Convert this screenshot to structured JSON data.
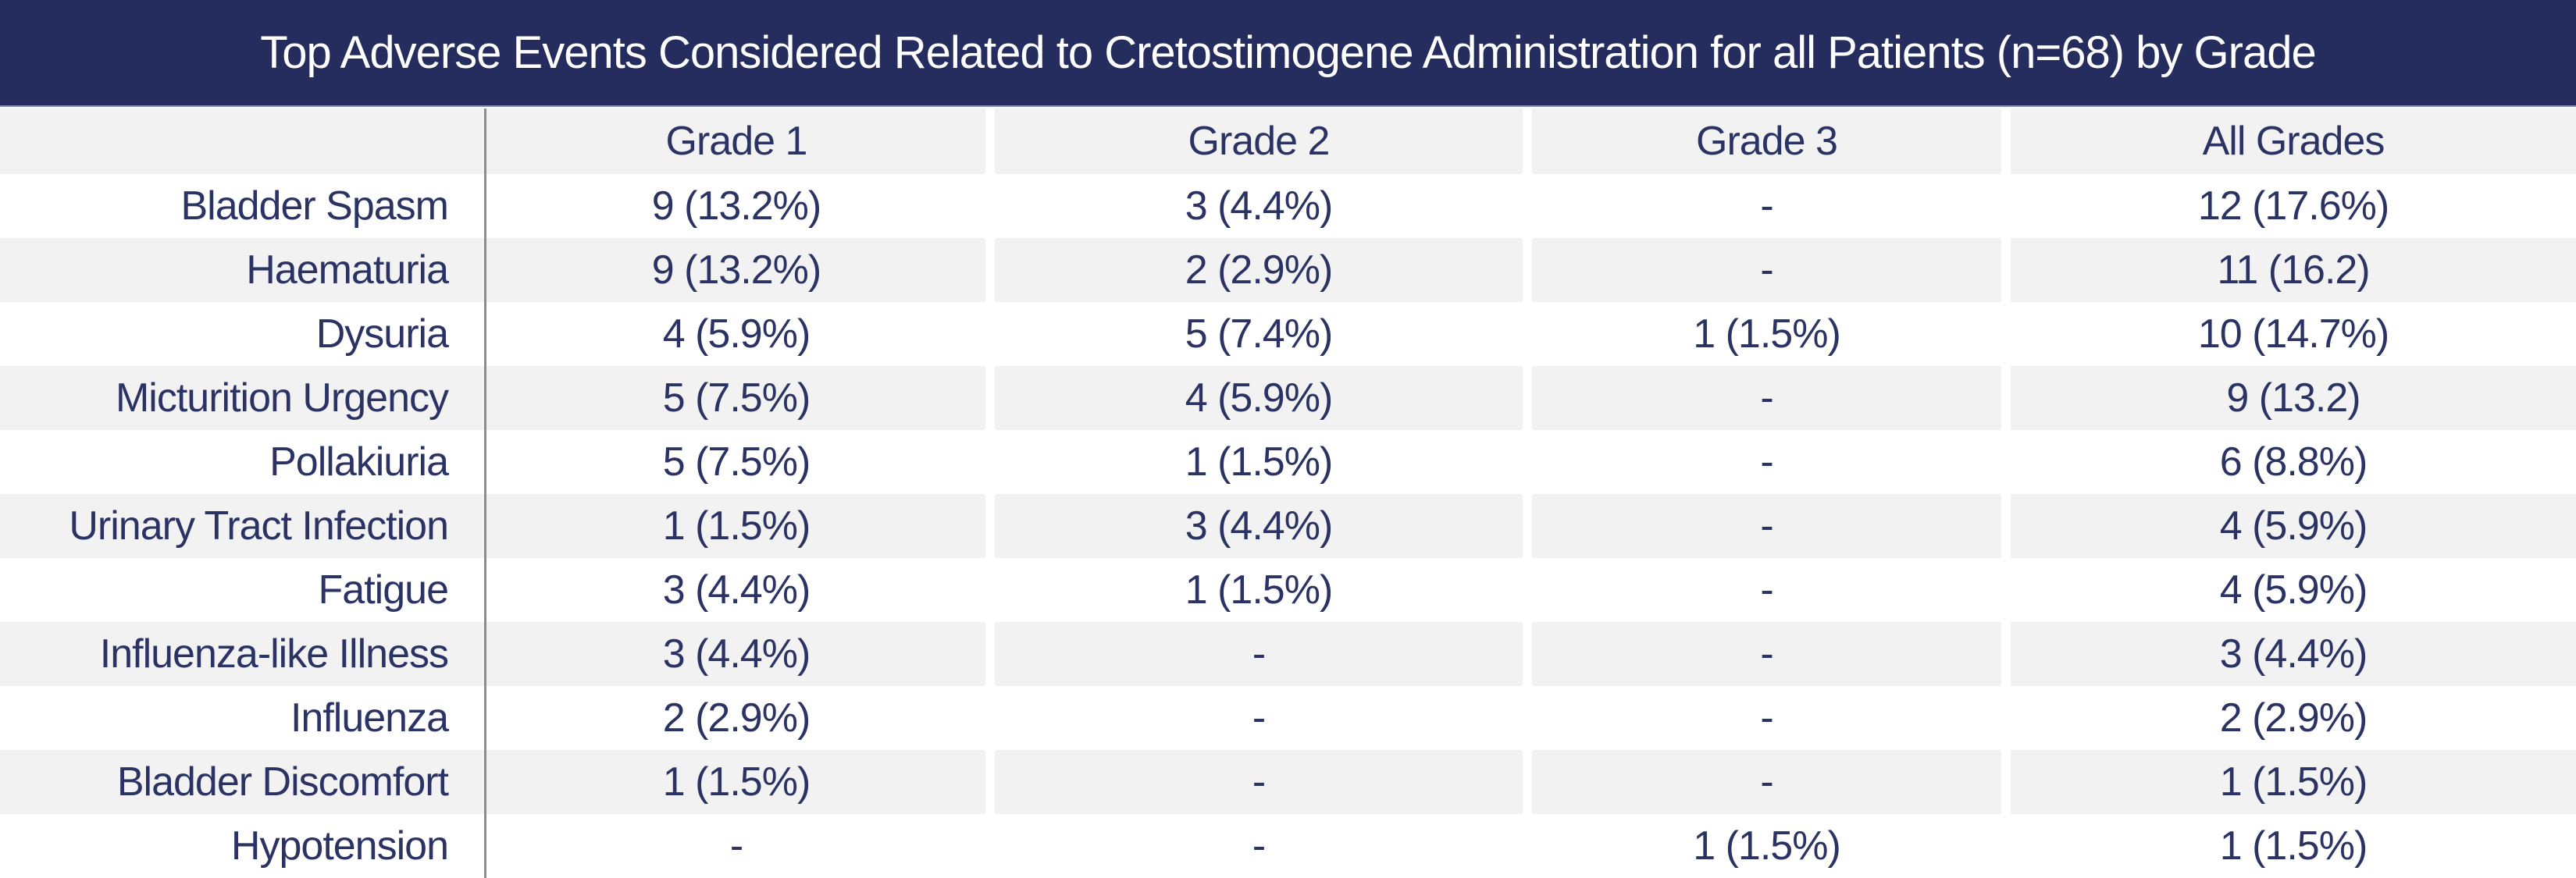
{
  "chart_data": {
    "type": "table",
    "title": "Top Adverse Events Considered Related to Cretostimogene Administration for all Patients (n=68) by Grade",
    "columns": [
      "",
      "Grade 1",
      "Grade 2",
      "Grade 3",
      "All Grades"
    ],
    "rows": [
      {
        "label": "Bladder Spasm",
        "values": [
          "9 (13.2%)",
          "3 (4.4%)",
          "-",
          "12 (17.6%)"
        ]
      },
      {
        "label": "Haematuria",
        "values": [
          "9 (13.2%)",
          "2 (2.9%)",
          "-",
          "11 (16.2)"
        ]
      },
      {
        "label": "Dysuria",
        "values": [
          "4 (5.9%)",
          "5 (7.4%)",
          "1 (1.5%)",
          "10 (14.7%)"
        ]
      },
      {
        "label": "Micturition Urgency",
        "values": [
          "5 (7.5%)",
          "4 (5.9%)",
          "-",
          "9 (13.2)"
        ]
      },
      {
        "label": "Pollakiuria",
        "values": [
          "5 (7.5%)",
          "1 (1.5%)",
          "-",
          "6 (8.8%)"
        ]
      },
      {
        "label": "Urinary Tract Infection",
        "values": [
          "1 (1.5%)",
          "3 (4.4%)",
          "-",
          "4 (5.9%)"
        ]
      },
      {
        "label": "Fatigue",
        "values": [
          "3 (4.4%)",
          "1 (1.5%)",
          "-",
          "4 (5.9%)"
        ]
      },
      {
        "label": "Influenza-like Illness",
        "values": [
          "3 (4.4%)",
          "-",
          "-",
          "3 (4.4%)"
        ]
      },
      {
        "label": "Influenza",
        "values": [
          "2 (2.9%)",
          "-",
          "-",
          "2 (2.9%)"
        ]
      },
      {
        "label": "Bladder Discomfort",
        "values": [
          "1 (1.5%)",
          "-",
          "-",
          "1 (1.5%)"
        ]
      },
      {
        "label": "Hypotension",
        "values": [
          "-",
          "-",
          "1 (1.5%)",
          "1 (1.5%)"
        ]
      }
    ],
    "layout_hints": {
      "striped_rows": true,
      "first_data_row_background": "white",
      "row_label_alignment": "right",
      "value_alignment": "center"
    }
  },
  "colors": {
    "title_bg": "#252c5e",
    "title_text": "#ffffff",
    "table_text": "#2b3365",
    "stripe_bg": "#f2f2f3",
    "column_divider": "#8c8c8c",
    "title_underline": "#8a8eb4"
  }
}
